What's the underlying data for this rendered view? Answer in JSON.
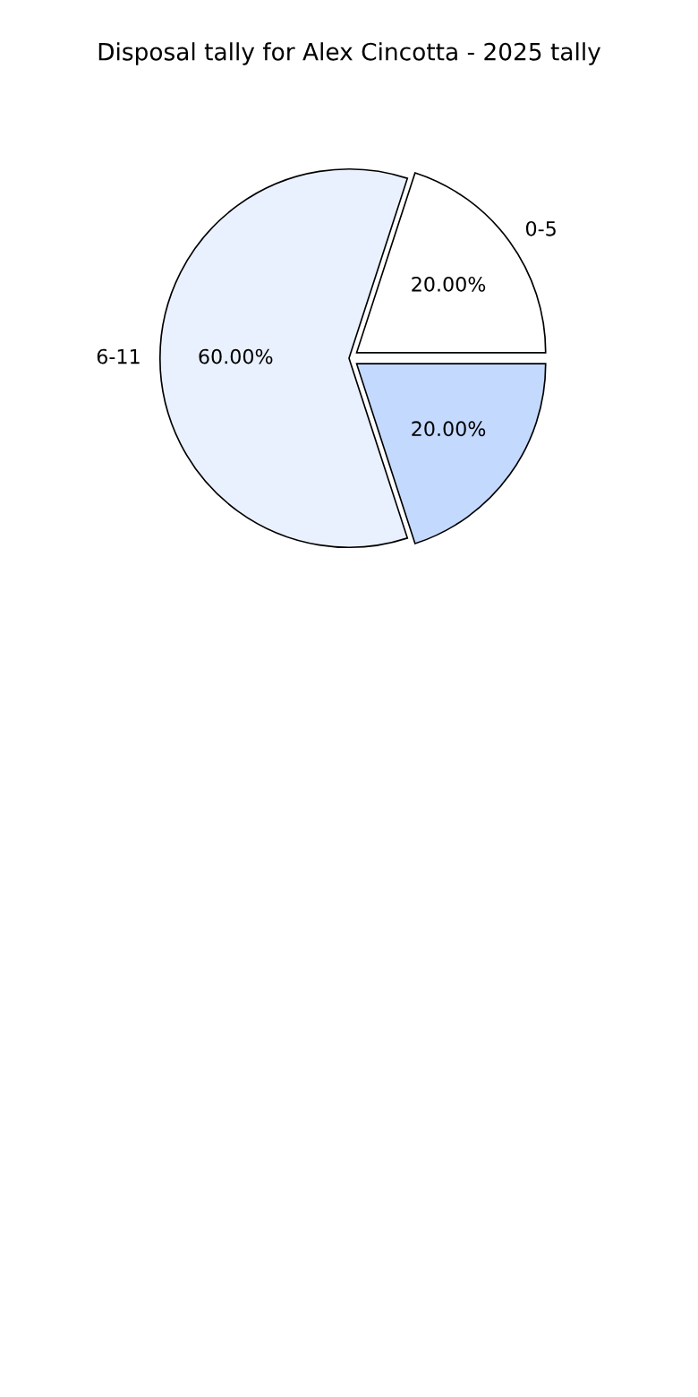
{
  "chart_data": {
    "type": "pie",
    "title": "Disposal tally for Alex Cincotta - 2025 tally",
    "categories": [
      "0-5",
      "6-11",
      null
    ],
    "values": [
      20,
      60,
      20
    ],
    "colors": [
      "#ffffff",
      "#eaf1fe",
      "#c4d9fe"
    ],
    "value_labels": [
      "20.00%",
      "60.00%",
      "20.00%"
    ],
    "legend": false
  }
}
